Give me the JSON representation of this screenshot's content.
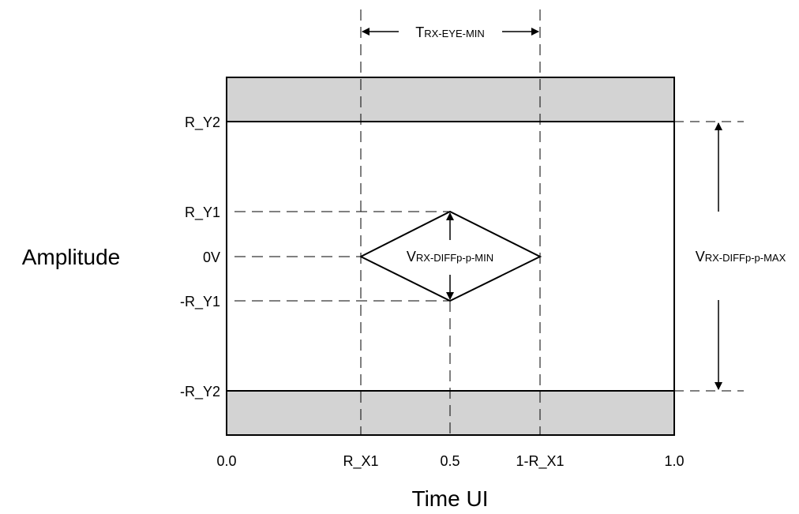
{
  "colors": {
    "line": "#000000",
    "band": "#d3d3d3",
    "background": "#ffffff"
  },
  "axes": {
    "y_title": "Amplitude",
    "x_title": "Time UI"
  },
  "y_labels": {
    "r_y2": "R_Y2",
    "r_y1": "R_Y1",
    "zero": "0V",
    "neg_r_y1": "-R_Y1",
    "neg_r_y2": "-R_Y2"
  },
  "x_labels": {
    "zero": "0.0",
    "r_x1": "R_X1",
    "half": "0.5",
    "one_minus_r_x1": "1-R_X1",
    "one": "1.0"
  },
  "dimensions": {
    "t_eye_min": {
      "main": "T",
      "sub": "RX-EYE-MIN"
    },
    "v_diff_min": {
      "main": "V",
      "sub": "RX-DIFFp-p-MIN"
    },
    "v_diff_max": {
      "main": "V",
      "sub": "RX-DIFFp-p-MAX"
    }
  }
}
